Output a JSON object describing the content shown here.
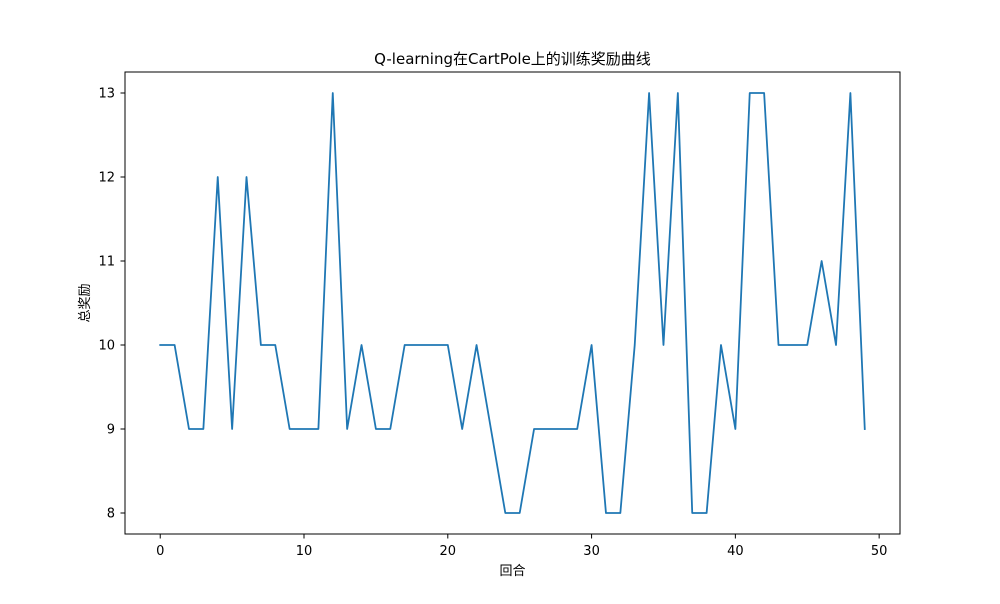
{
  "chart_data": {
    "type": "line",
    "title": "Q-learning在CartPole上的训练奖励曲线",
    "xlabel": "回合",
    "ylabel": "总奖励",
    "xlim": [
      -2.45,
      51.45
    ],
    "ylim": [
      7.75,
      13.25
    ],
    "xticks": [
      0,
      10,
      20,
      30,
      40,
      50
    ],
    "yticks": [
      8,
      9,
      10,
      11,
      12,
      13
    ],
    "grid": false,
    "series": [
      {
        "color": "#1f77b4",
        "x": [
          0,
          1,
          2,
          3,
          4,
          5,
          6,
          7,
          8,
          9,
          10,
          11,
          12,
          13,
          14,
          15,
          16,
          17,
          18,
          19,
          20,
          21,
          22,
          23,
          24,
          25,
          26,
          27,
          28,
          29,
          30,
          31,
          32,
          33,
          34,
          35,
          36,
          37,
          38,
          39,
          40,
          41,
          42,
          43,
          44,
          45,
          46,
          47,
          48,
          49
        ],
        "values": [
          10,
          10,
          9,
          9,
          12,
          9,
          12,
          10,
          10,
          9,
          9,
          9,
          13,
          9,
          10,
          9,
          9,
          10,
          10,
          10,
          10,
          9,
          10,
          9,
          8,
          8,
          9,
          9,
          9,
          9,
          10,
          8,
          8,
          10,
          13,
          10,
          13,
          8,
          8,
          10,
          9,
          13,
          13,
          10,
          10,
          10,
          11,
          10,
          13,
          9
        ]
      }
    ]
  }
}
